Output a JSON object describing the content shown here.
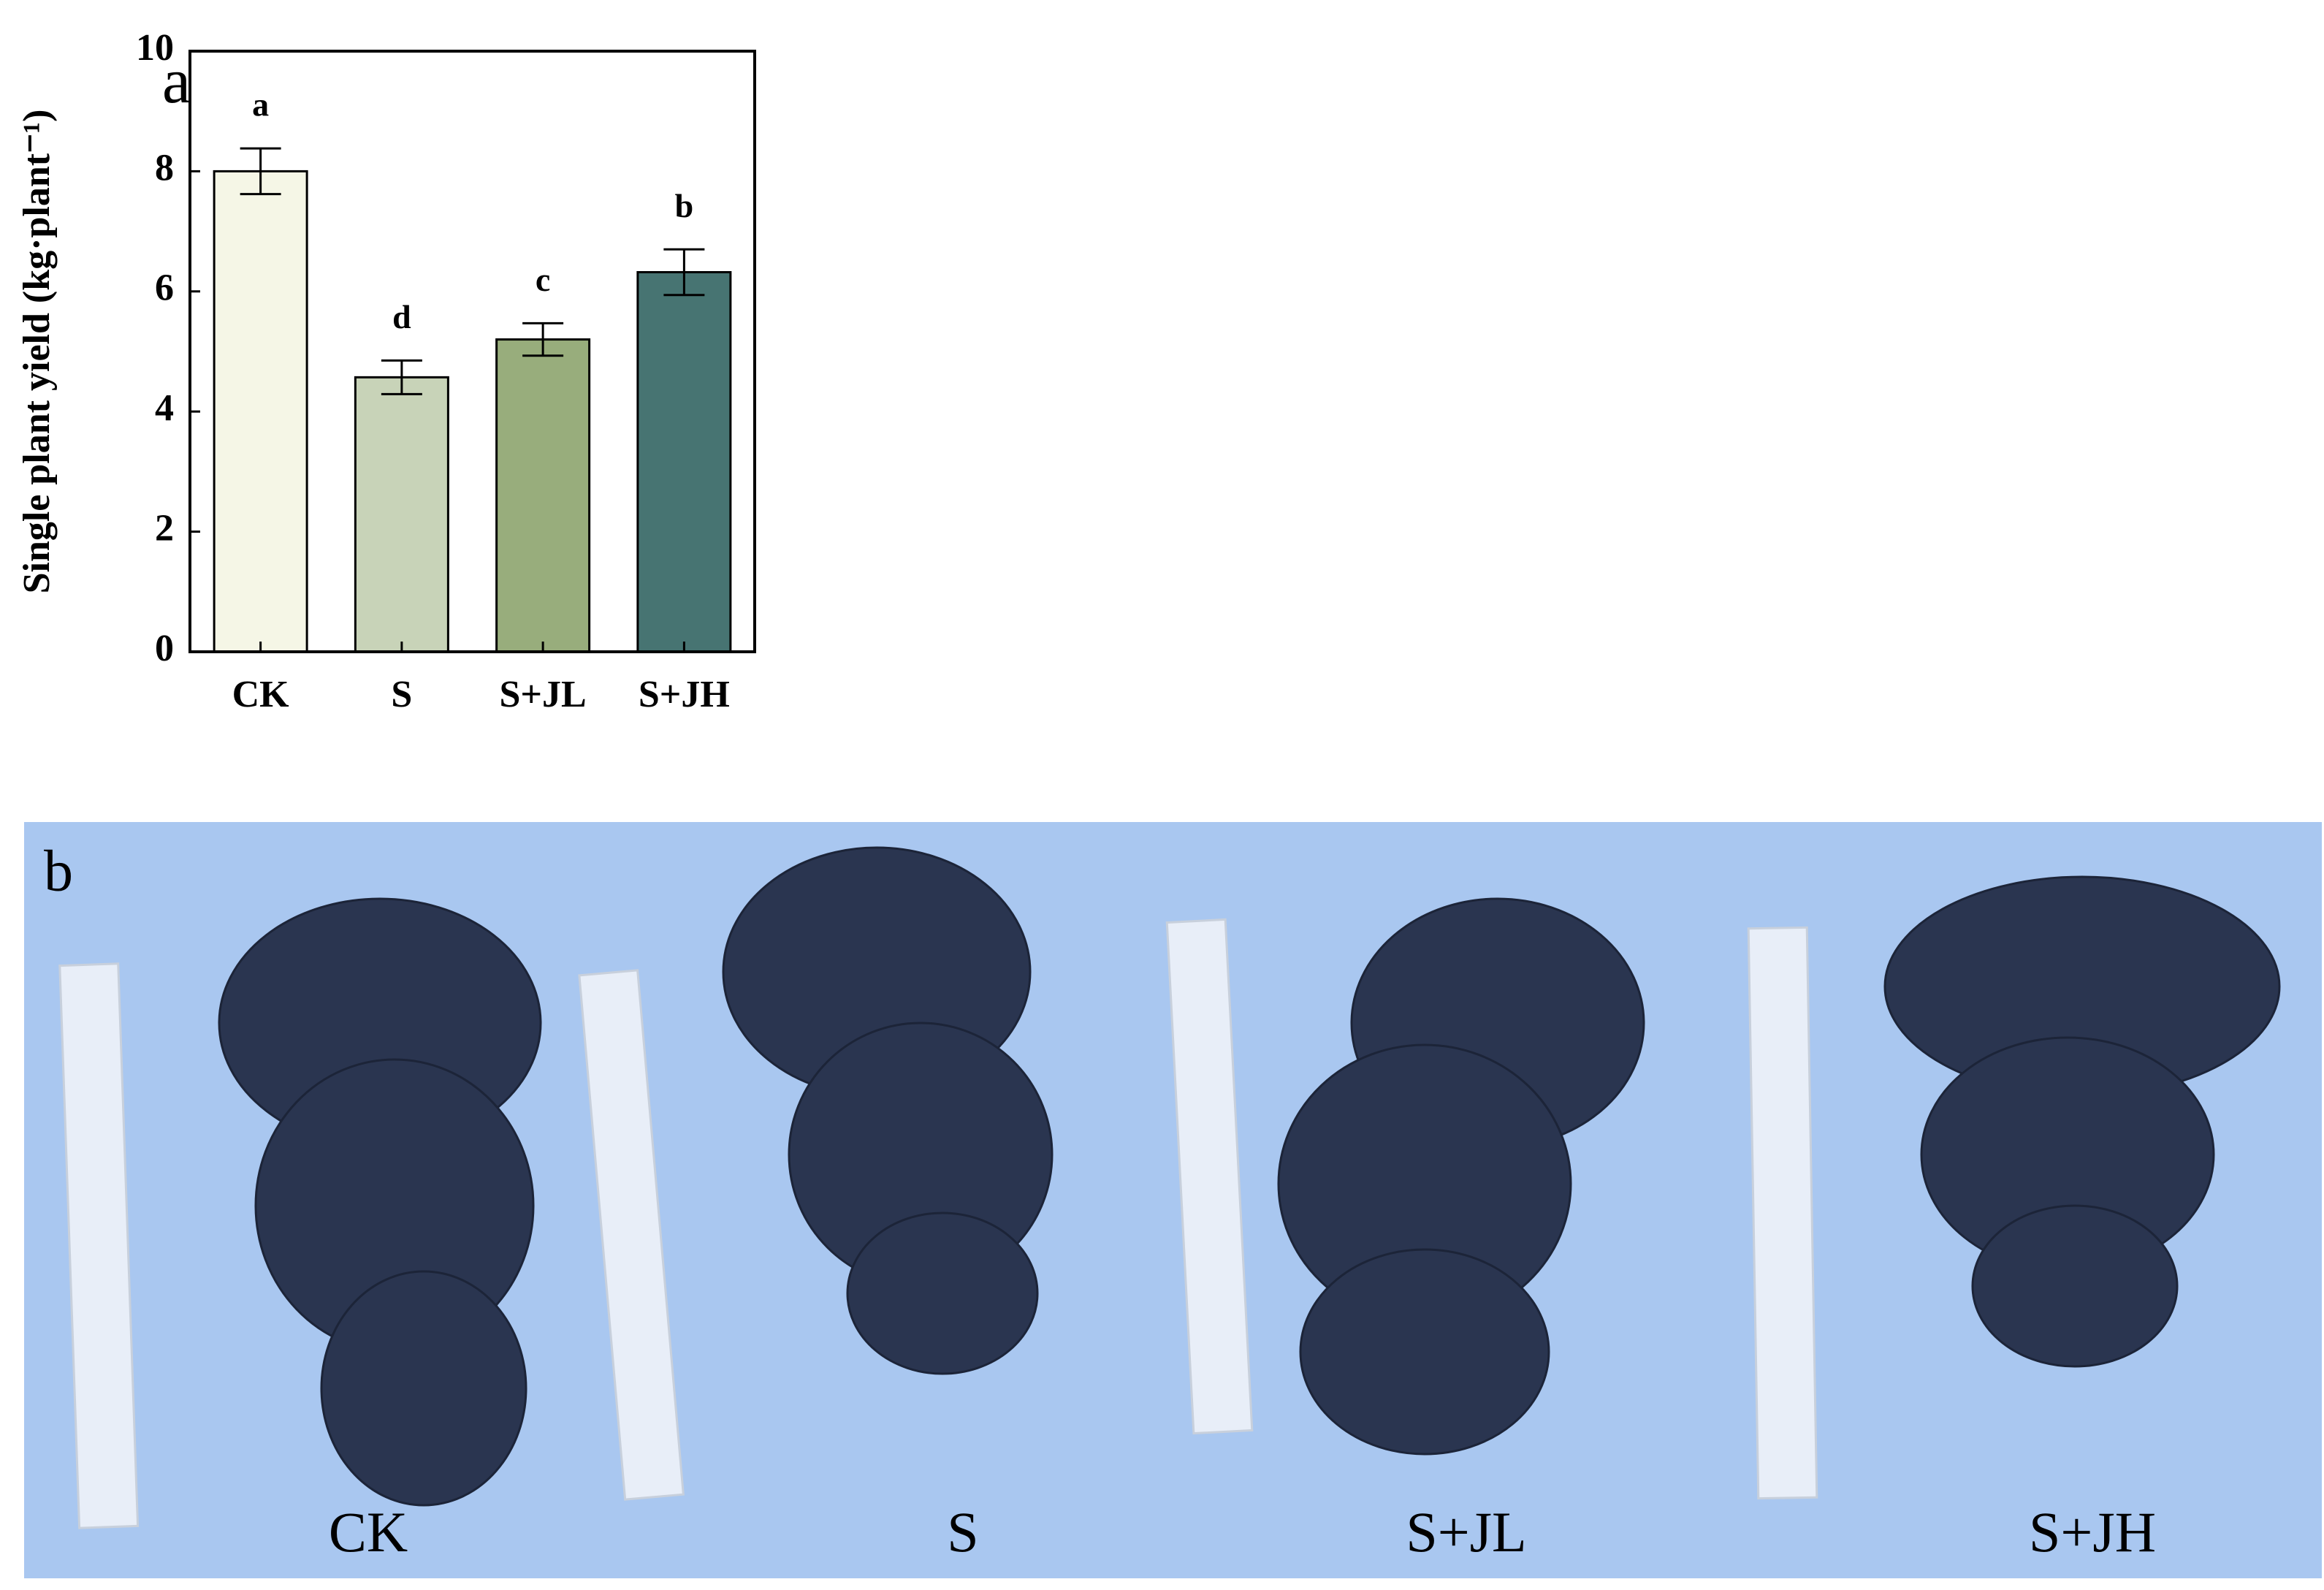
{
  "chart_data": {
    "type": "bar",
    "panel_label": "a",
    "ylabel": "Single plant yield (kg·plant⁻¹)",
    "categories": [
      "CK",
      "S",
      "S+JL",
      "S+JH"
    ],
    "values": [
      8.0,
      4.57,
      5.2,
      6.32
    ],
    "errors": [
      0.38,
      0.28,
      0.27,
      0.38
    ],
    "annotations": [
      "a",
      "d",
      "c",
      "b"
    ],
    "colors": [
      "#f5f6e6",
      "#c8d3b8",
      "#98ad7c",
      "#477472"
    ],
    "ylim": [
      0,
      10
    ],
    "yticks": [
      0,
      2,
      4,
      6,
      8,
      10
    ]
  },
  "photo_panel": {
    "label": "b",
    "captions": [
      "CK",
      "S",
      "S+JL",
      "S+JH"
    ]
  }
}
